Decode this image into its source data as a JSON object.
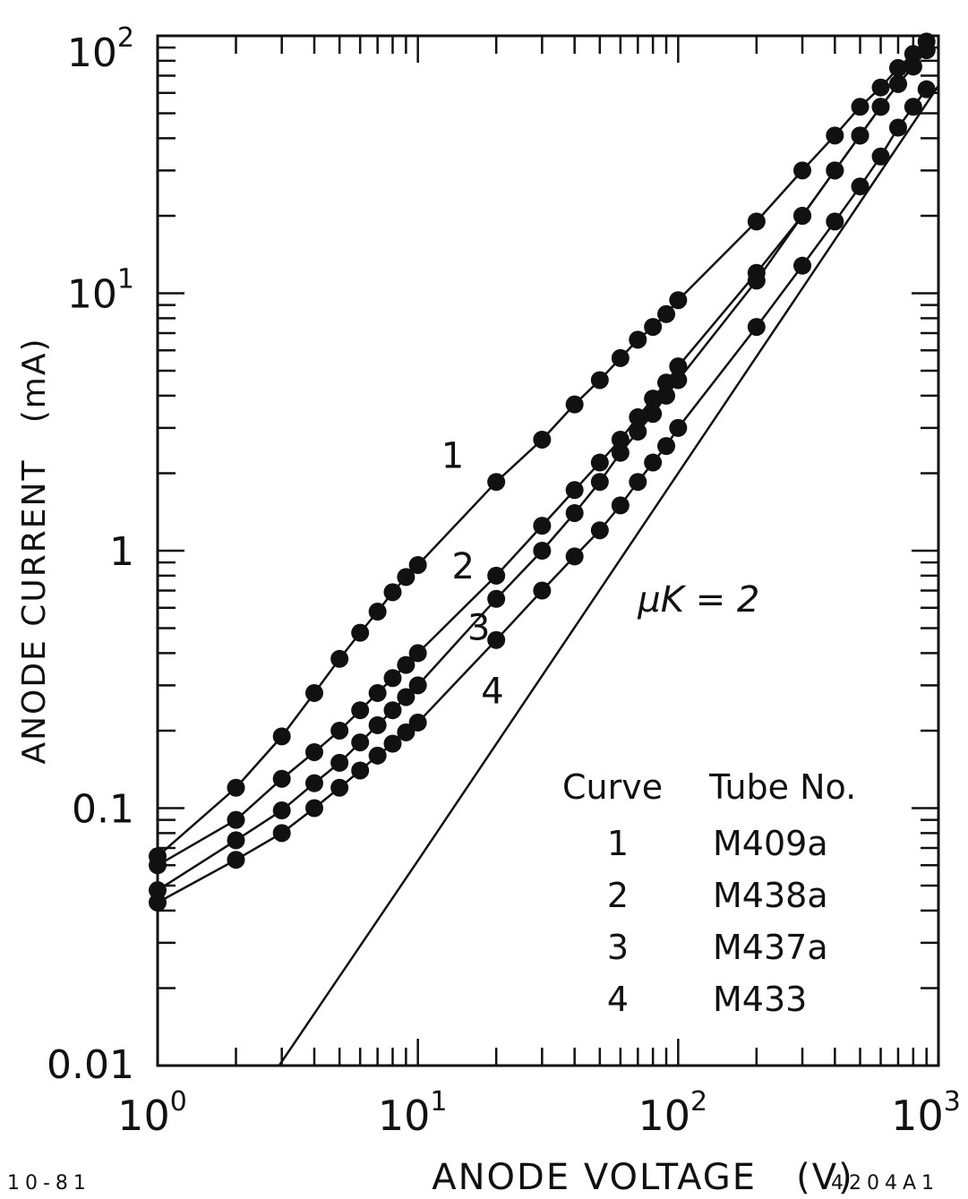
{
  "chart_data": {
    "type": "scatter",
    "title": "",
    "xlabel": "ANODE VOLTAGE   (V)",
    "ylabel": "ANODE CURRENT   (mA)",
    "x_scale": "log",
    "y_scale": "log",
    "xlim": [
      1,
      1000
    ],
    "ylim": [
      0.01,
      100
    ],
    "grid": false,
    "x_tick_labels": [
      {
        "value": 1,
        "base": "10",
        "exp": "0"
      },
      {
        "value": 10,
        "base": "10",
        "exp": "1"
      },
      {
        "value": 100,
        "base": "10",
        "exp": "2"
      },
      {
        "value": 1000,
        "base": "10",
        "exp": "3"
      }
    ],
    "y_tick_labels": [
      {
        "value": 0.01,
        "base": "0.01",
        "exp": ""
      },
      {
        "value": 0.1,
        "base": "0.1",
        "exp": ""
      },
      {
        "value": 1,
        "base": "1",
        "exp": ""
      },
      {
        "value": 10,
        "base": "10",
        "exp": "1"
      },
      {
        "value": 100,
        "base": "10",
        "exp": "2"
      }
    ],
    "series": [
      {
        "name": "1",
        "x": [
          1,
          2,
          3,
          4,
          5,
          6,
          7,
          8,
          9,
          10,
          20,
          30,
          40,
          50,
          60,
          70,
          80,
          90,
          100,
          200,
          300,
          400,
          500,
          600,
          700,
          800,
          900
        ],
        "y": [
          0.065,
          0.12,
          0.19,
          0.28,
          0.38,
          0.48,
          0.58,
          0.69,
          0.79,
          0.88,
          1.85,
          2.7,
          3.7,
          4.6,
          5.6,
          6.6,
          7.4,
          8.3,
          9.4,
          19,
          30,
          41,
          53,
          63,
          75,
          85,
          95
        ]
      },
      {
        "name": "2",
        "x": [
          1,
          2,
          3,
          4,
          5,
          6,
          7,
          8,
          9,
          10,
          20,
          30,
          40,
          50,
          60,
          70,
          80,
          90,
          100,
          200,
          300,
          400,
          500,
          600,
          700,
          800,
          900
        ],
        "y": [
          0.06,
          0.09,
          0.13,
          0.165,
          0.2,
          0.24,
          0.28,
          0.32,
          0.36,
          0.4,
          0.8,
          1.25,
          1.72,
          2.2,
          2.7,
          3.3,
          3.9,
          4.5,
          5.2,
          12,
          20,
          30,
          41,
          53,
          65,
          76,
          88
        ]
      },
      {
        "name": "3",
        "x": [
          1,
          2,
          3,
          4,
          5,
          6,
          7,
          8,
          9,
          10,
          20,
          30,
          40,
          50,
          60,
          70,
          80,
          90,
          100,
          200,
          300,
          400,
          500,
          600,
          700,
          800,
          900
        ],
        "y": [
          0.048,
          0.075,
          0.098,
          0.125,
          0.15,
          0.18,
          0.21,
          0.24,
          0.27,
          0.3,
          0.65,
          1.0,
          1.4,
          1.85,
          2.4,
          2.9,
          3.4,
          4.0,
          4.6,
          11.2,
          20,
          30,
          41,
          53,
          65,
          76,
          88
        ]
      },
      {
        "name": "4",
        "x": [
          1,
          2,
          3,
          4,
          5,
          6,
          7,
          8,
          9,
          10,
          20,
          30,
          40,
          50,
          60,
          70,
          80,
          90,
          100,
          200,
          300,
          400,
          500,
          600,
          700,
          800,
          900
        ],
        "y": [
          0.043,
          0.063,
          0.08,
          0.1,
          0.12,
          0.14,
          0.16,
          0.178,
          0.197,
          0.215,
          0.45,
          0.7,
          0.95,
          1.2,
          1.5,
          1.85,
          2.2,
          2.55,
          3.0,
          7.4,
          12.8,
          19,
          26,
          34,
          44,
          53,
          62
        ]
      },
      {
        "name": "μK = 2",
        "style": "line-only",
        "x": [
          2.93,
          10,
          100,
          1000
        ],
        "y": [
          0.01,
          0.0625,
          2.0,
          64
        ]
      }
    ],
    "annotations": [
      {
        "text": "1",
        "x": 12.3,
        "y": 2.1
      },
      {
        "text": "2",
        "x": 13.5,
        "y": 0.78
      },
      {
        "text": "3",
        "x": 15.5,
        "y": 0.45
      },
      {
        "text": "4",
        "x": 17.5,
        "y": 0.255
      },
      {
        "text": "μK = 2",
        "x": 70,
        "y": 0.58
      }
    ],
    "legend": {
      "header_curve": "Curve",
      "header_tube": "Tube No.",
      "rows": [
        {
          "curve": "1",
          "tube": "M409a"
        },
        {
          "curve": "2",
          "tube": "M438a"
        },
        {
          "curve": "3",
          "tube": "M437a"
        },
        {
          "curve": "4",
          "tube": "M433"
        }
      ],
      "placement": "bottom-right"
    }
  },
  "footer": {
    "left_code": "10-81",
    "right_code": "4204A1"
  }
}
